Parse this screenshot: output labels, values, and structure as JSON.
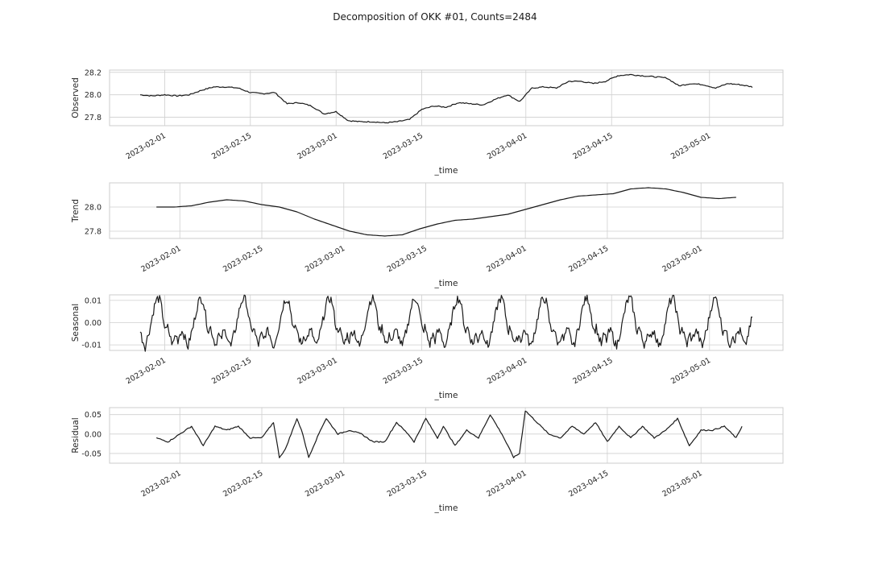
{
  "figure": {
    "title": "Decomposition of OKK #01, Counts=2484",
    "line_color": "#1a1a1a",
    "grid_color": "#cccccc",
    "background": "#ffffff"
  },
  "chart_data": [
    {
      "type": "line",
      "xlabel": "_time",
      "ylabel": "Observed",
      "xlim": [
        "2023-01-23",
        "2023-05-13"
      ],
      "ylim": [
        27.725,
        28.22
      ],
      "xticks": [
        "2023-02-01",
        "2023-02-15",
        "2023-03-01",
        "2023-03-15",
        "2023-04-01",
        "2023-04-15",
        "2023-05-01"
      ],
      "yticks": [
        27.8,
        28.0,
        28.2
      ],
      "ytick_labels": [
        "27.8",
        "28.0",
        "28.2"
      ],
      "grid": true,
      "series": [
        {
          "x": [
            "2023-01-28",
            "2023-01-30",
            "2023-02-01",
            "2023-02-03",
            "2023-02-05",
            "2023-02-07",
            "2023-02-09",
            "2023-02-11",
            "2023-02-13",
            "2023-02-15",
            "2023-02-17",
            "2023-02-19",
            "2023-02-21",
            "2023-02-23",
            "2023-02-25",
            "2023-02-27",
            "2023-03-01",
            "2023-03-03",
            "2023-03-05",
            "2023-03-07",
            "2023-03-09",
            "2023-03-11",
            "2023-03-13",
            "2023-03-15",
            "2023-03-17",
            "2023-03-19",
            "2023-03-21",
            "2023-03-23",
            "2023-03-25",
            "2023-03-27",
            "2023-03-29",
            "2023-03-31",
            "2023-04-02",
            "2023-04-04",
            "2023-04-06",
            "2023-04-08",
            "2023-04-10",
            "2023-04-12",
            "2023-04-14",
            "2023-04-16",
            "2023-04-18",
            "2023-04-20",
            "2023-04-22",
            "2023-04-24",
            "2023-04-26",
            "2023-04-28",
            "2023-04-30",
            "2023-05-02",
            "2023-05-04",
            "2023-05-06",
            "2023-05-08"
          ],
          "y": [
            28.0,
            27.99,
            28.0,
            27.99,
            28.0,
            28.04,
            28.07,
            28.07,
            28.06,
            28.02,
            28.01,
            28.02,
            27.92,
            27.93,
            27.9,
            27.83,
            27.85,
            27.77,
            27.76,
            27.76,
            27.75,
            27.76,
            27.78,
            27.87,
            27.9,
            27.89,
            27.93,
            27.92,
            27.91,
            27.96,
            28.0,
            27.94,
            28.06,
            28.07,
            28.06,
            28.12,
            28.12,
            28.1,
            28.12,
            28.17,
            28.18,
            28.17,
            28.16,
            28.15,
            28.08,
            28.1,
            28.09,
            28.06,
            28.1,
            28.09,
            28.07
          ]
        }
      ]
    },
    {
      "type": "line",
      "xlabel": "_time",
      "ylabel": "Trend",
      "xlim": [
        "2023-01-20",
        "2023-05-15"
      ],
      "ylim": [
        27.74,
        28.2
      ],
      "xticks": [
        "2023-02-01",
        "2023-02-15",
        "2023-03-01",
        "2023-03-15",
        "2023-04-01",
        "2023-04-15",
        "2023-05-01"
      ],
      "yticks": [
        27.8,
        28.0
      ],
      "ytick_labels": [
        "27.8",
        "28.0"
      ],
      "grid": true,
      "series": [
        {
          "x": [
            "2023-01-28",
            "2023-01-31",
            "2023-02-03",
            "2023-02-06",
            "2023-02-09",
            "2023-02-12",
            "2023-02-15",
            "2023-02-18",
            "2023-02-21",
            "2023-02-24",
            "2023-02-27",
            "2023-03-02",
            "2023-03-05",
            "2023-03-08",
            "2023-03-11",
            "2023-03-14",
            "2023-03-17",
            "2023-03-20",
            "2023-03-23",
            "2023-03-26",
            "2023-03-29",
            "2023-04-01",
            "2023-04-04",
            "2023-04-07",
            "2023-04-10",
            "2023-04-13",
            "2023-04-16",
            "2023-04-19",
            "2023-04-22",
            "2023-04-25",
            "2023-04-28",
            "2023-05-01",
            "2023-05-04",
            "2023-05-07"
          ],
          "y": [
            28.0,
            28.0,
            28.01,
            28.04,
            28.06,
            28.05,
            28.02,
            28.0,
            27.96,
            27.9,
            27.85,
            27.8,
            27.77,
            27.76,
            27.77,
            27.82,
            27.86,
            27.89,
            27.9,
            27.92,
            27.94,
            27.98,
            28.02,
            28.06,
            28.09,
            28.1,
            28.11,
            28.15,
            28.16,
            28.15,
            28.12,
            28.08,
            28.07,
            28.08
          ]
        }
      ]
    },
    {
      "type": "line",
      "xlabel": "_time",
      "ylabel": "Seasonal",
      "xlim": [
        "2023-01-23",
        "2023-05-13"
      ],
      "ylim": [
        -0.0125,
        0.0125
      ],
      "xticks": [
        "2023-02-01",
        "2023-02-15",
        "2023-03-01",
        "2023-03-15",
        "2023-04-01",
        "2023-04-15",
        "2023-05-01"
      ],
      "yticks": [
        -0.01,
        0.0,
        0.01
      ],
      "ytick_labels": [
        "-0.01",
        "0.00",
        "0.01"
      ],
      "grid": true,
      "period_days": 7,
      "cycle_shape": [
        -0.004,
        -0.008,
        -0.011,
        -0.006,
        -0.002,
        0.004,
        0.009,
        0.011,
        0.01,
        0.003,
        -0.004,
        -0.002,
        -0.007,
        -0.01,
        -0.005,
        -0.008,
        -0.004
      ],
      "series": [
        {
          "x_start": "2023-01-28",
          "x_end": "2023-05-08"
        }
      ]
    },
    {
      "type": "line",
      "xlabel": "_time",
      "ylabel": "Residual",
      "xlim": [
        "2023-01-20",
        "2023-05-15"
      ],
      "ylim": [
        -0.075,
        0.068
      ],
      "xticks": [
        "2023-02-01",
        "2023-02-15",
        "2023-03-01",
        "2023-03-15",
        "2023-04-01",
        "2023-04-15",
        "2023-05-01"
      ],
      "yticks": [
        -0.05,
        0.0,
        0.05
      ],
      "ytick_labels": [
        "-0.05",
        "0.00",
        "0.05"
      ],
      "grid": true,
      "series": [
        {
          "x": [
            "2023-01-28",
            "2023-01-30",
            "2023-02-01",
            "2023-02-03",
            "2023-02-05",
            "2023-02-07",
            "2023-02-09",
            "2023-02-11",
            "2023-02-13",
            "2023-02-15",
            "2023-02-17",
            "2023-02-18",
            "2023-02-19",
            "2023-02-21",
            "2023-02-22",
            "2023-02-23",
            "2023-02-25",
            "2023-02-26",
            "2023-02-28",
            "2023-03-02",
            "2023-03-04",
            "2023-03-06",
            "2023-03-08",
            "2023-03-10",
            "2023-03-12",
            "2023-03-13",
            "2023-03-15",
            "2023-03-17",
            "2023-03-18",
            "2023-03-20",
            "2023-03-22",
            "2023-03-24",
            "2023-03-26",
            "2023-03-28",
            "2023-03-30",
            "2023-03-31",
            "2023-04-01",
            "2023-04-03",
            "2023-04-05",
            "2023-04-07",
            "2023-04-09",
            "2023-04-11",
            "2023-04-13",
            "2023-04-15",
            "2023-04-17",
            "2023-04-19",
            "2023-04-21",
            "2023-04-23",
            "2023-04-25",
            "2023-04-27",
            "2023-04-29",
            "2023-05-01",
            "2023-05-03",
            "2023-05-05",
            "2023-05-07",
            "2023-05-08"
          ],
          "y": [
            -0.01,
            -0.02,
            0.0,
            0.02,
            -0.03,
            0.02,
            0.01,
            0.02,
            -0.01,
            -0.01,
            0.03,
            -0.06,
            -0.04,
            0.04,
            0.0,
            -0.06,
            0.01,
            0.04,
            0.0,
            0.01,
            0.0,
            -0.02,
            -0.02,
            0.03,
            0.0,
            -0.02,
            0.04,
            -0.01,
            0.02,
            -0.03,
            0.01,
            -0.01,
            0.05,
            0.0,
            -0.06,
            -0.05,
            0.06,
            0.03,
            0.0,
            -0.01,
            0.02,
            0.0,
            0.03,
            -0.02,
            0.02,
            -0.01,
            0.02,
            -0.01,
            0.01,
            0.04,
            -0.03,
            0.01,
            0.01,
            0.02,
            -0.01,
            0.02
          ]
        }
      ]
    }
  ]
}
